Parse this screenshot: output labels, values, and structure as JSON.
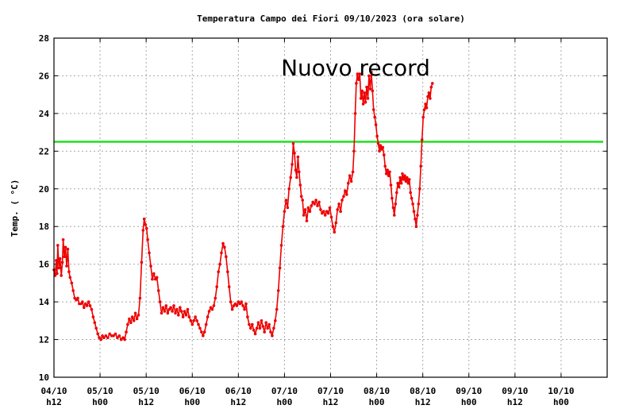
{
  "chart_data": {
    "type": "line",
    "title": "Temperatura Campo dei Fiori 09/10/2023 (ora solare)",
    "ylabel": "Temp. ( °C)",
    "xlabel": "",
    "ylim": [
      10,
      28
    ],
    "yticks": [
      10,
      12,
      14,
      16,
      18,
      20,
      22,
      24,
      26,
      28
    ],
    "xlim_hours": [
      0,
      144
    ],
    "xticks": [
      {
        "h": 0,
        "line1": "04/10",
        "line2": "h12"
      },
      {
        "h": 12,
        "line1": "05/10",
        "line2": "h00"
      },
      {
        "h": 24,
        "line1": "05/10",
        "line2": "h12"
      },
      {
        "h": 36,
        "line1": "06/10",
        "line2": "h00"
      },
      {
        "h": 48,
        "line1": "06/10",
        "line2": "h12"
      },
      {
        "h": 60,
        "line1": "07/10",
        "line2": "h00"
      },
      {
        "h": 72,
        "line1": "07/10",
        "line2": "h12"
      },
      {
        "h": 84,
        "line1": "08/10",
        "line2": "h00"
      },
      {
        "h": 96,
        "line1": "08/10",
        "line2": "h12"
      },
      {
        "h": 108,
        "line1": "09/10",
        "line2": "h00"
      },
      {
        "h": 120,
        "line1": "09/10",
        "line2": "h12"
      },
      {
        "h": 132,
        "line1": "10/10",
        "line2": "h00"
      }
    ],
    "grid": true,
    "annotation": "Nuovo record",
    "reference_line": {
      "y": 22.5,
      "color": "#22dd22"
    },
    "series": [
      {
        "color": "#ee0000",
        "points": [
          [
            0.0,
            15.7
          ],
          [
            0.3,
            15.4
          ],
          [
            0.6,
            16.2
          ],
          [
            0.8,
            15.5
          ],
          [
            1.0,
            17.0
          ],
          [
            1.3,
            15.8
          ],
          [
            1.6,
            16.3
          ],
          [
            1.9,
            15.4
          ],
          [
            2.2,
            16.1
          ],
          [
            2.4,
            17.3
          ],
          [
            2.7,
            16.4
          ],
          [
            3.0,
            16.9
          ],
          [
            3.3,
            15.9
          ],
          [
            3.6,
            16.8
          ],
          [
            3.9,
            15.6
          ],
          [
            4.2,
            15.3
          ],
          [
            4.6,
            15.0
          ],
          [
            5.0,
            14.6
          ],
          [
            5.4,
            14.2
          ],
          [
            5.8,
            14.1
          ],
          [
            6.2,
            14.2
          ],
          [
            6.6,
            13.9
          ],
          [
            7.0,
            13.9
          ],
          [
            7.4,
            14.0
          ],
          [
            7.8,
            13.7
          ],
          [
            8.2,
            13.9
          ],
          [
            8.6,
            13.8
          ],
          [
            9.0,
            14.0
          ],
          [
            9.4,
            13.8
          ],
          [
            9.8,
            13.6
          ],
          [
            10.2,
            13.2
          ],
          [
            10.6,
            12.9
          ],
          [
            11.0,
            12.6
          ],
          [
            11.4,
            12.3
          ],
          [
            11.8,
            12.1
          ],
          [
            12.2,
            12.0
          ],
          [
            12.6,
            12.2
          ],
          [
            13.0,
            12.1
          ],
          [
            13.5,
            12.2
          ],
          [
            14.0,
            12.1
          ],
          [
            14.5,
            12.3
          ],
          [
            15.0,
            12.2
          ],
          [
            15.5,
            12.2
          ],
          [
            16.0,
            12.3
          ],
          [
            16.5,
            12.1
          ],
          [
            17.0,
            12.2
          ],
          [
            17.5,
            12.0
          ],
          [
            18.0,
            12.1
          ],
          [
            18.4,
            12.0
          ],
          [
            18.8,
            12.4
          ],
          [
            19.2,
            12.8
          ],
          [
            19.6,
            13.1
          ],
          [
            20.0,
            12.9
          ],
          [
            20.4,
            13.2
          ],
          [
            20.8,
            13.0
          ],
          [
            21.2,
            13.4
          ],
          [
            21.6,
            13.1
          ],
          [
            22.0,
            13.3
          ],
          [
            22.4,
            14.2
          ],
          [
            22.8,
            16.1
          ],
          [
            23.2,
            17.8
          ],
          [
            23.5,
            18.4
          ],
          [
            23.8,
            18.1
          ],
          [
            24.1,
            17.9
          ],
          [
            24.4,
            17.3
          ],
          [
            24.8,
            16.6
          ],
          [
            25.2,
            15.9
          ],
          [
            25.6,
            15.2
          ],
          [
            26.0,
            15.5
          ],
          [
            26.4,
            15.2
          ],
          [
            26.8,
            15.3
          ],
          [
            27.2,
            14.6
          ],
          [
            27.6,
            14.0
          ],
          [
            28.0,
            13.4
          ],
          [
            28.4,
            13.7
          ],
          [
            28.8,
            13.5
          ],
          [
            29.2,
            13.8
          ],
          [
            29.6,
            13.4
          ],
          [
            30.0,
            13.6
          ],
          [
            30.4,
            13.7
          ],
          [
            30.8,
            13.5
          ],
          [
            31.2,
            13.8
          ],
          [
            31.6,
            13.4
          ],
          [
            32.0,
            13.6
          ],
          [
            32.4,
            13.3
          ],
          [
            32.8,
            13.7
          ],
          [
            33.2,
            13.5
          ],
          [
            33.6,
            13.2
          ],
          [
            34.0,
            13.5
          ],
          [
            34.4,
            13.3
          ],
          [
            34.8,
            13.6
          ],
          [
            35.2,
            13.2
          ],
          [
            35.6,
            13.0
          ],
          [
            36.0,
            12.8
          ],
          [
            36.4,
            13.0
          ],
          [
            36.8,
            13.2
          ],
          [
            37.2,
            13.0
          ],
          [
            37.6,
            12.8
          ],
          [
            38.0,
            12.6
          ],
          [
            38.4,
            12.4
          ],
          [
            38.8,
            12.2
          ],
          [
            39.2,
            12.4
          ],
          [
            39.6,
            12.8
          ],
          [
            40.0,
            13.2
          ],
          [
            40.4,
            13.5
          ],
          [
            40.8,
            13.7
          ],
          [
            41.2,
            13.6
          ],
          [
            41.6,
            13.8
          ],
          [
            42.0,
            14.2
          ],
          [
            42.4,
            14.8
          ],
          [
            42.8,
            15.6
          ],
          [
            43.2,
            16.0
          ],
          [
            43.6,
            16.6
          ],
          [
            44.0,
            17.1
          ],
          [
            44.4,
            16.9
          ],
          [
            44.8,
            16.4
          ],
          [
            45.2,
            15.6
          ],
          [
            45.6,
            14.8
          ],
          [
            46.0,
            14.0
          ],
          [
            46.4,
            13.6
          ],
          [
            46.8,
            13.8
          ],
          [
            47.2,
            13.9
          ],
          [
            47.6,
            13.8
          ],
          [
            48.0,
            14.0
          ],
          [
            48.4,
            13.9
          ],
          [
            48.8,
            14.0
          ],
          [
            49.2,
            13.8
          ],
          [
            49.6,
            13.6
          ],
          [
            50.0,
            13.9
          ],
          [
            50.4,
            13.2
          ],
          [
            50.8,
            12.8
          ],
          [
            51.2,
            12.6
          ],
          [
            51.6,
            12.8
          ],
          [
            52.0,
            12.5
          ],
          [
            52.4,
            12.3
          ],
          [
            52.8,
            12.6
          ],
          [
            53.2,
            12.9
          ],
          [
            53.6,
            12.6
          ],
          [
            54.0,
            13.0
          ],
          [
            54.4,
            12.7
          ],
          [
            54.8,
            12.4
          ],
          [
            55.2,
            12.9
          ],
          [
            55.6,
            12.6
          ],
          [
            56.0,
            12.8
          ],
          [
            56.4,
            12.4
          ],
          [
            56.8,
            12.2
          ],
          [
            57.2,
            12.6
          ],
          [
            57.6,
            13.0
          ],
          [
            58.0,
            13.6
          ],
          [
            58.4,
            14.6
          ],
          [
            58.8,
            15.8
          ],
          [
            59.2,
            17.0
          ],
          [
            59.6,
            18.0
          ],
          [
            60.0,
            18.8
          ],
          [
            60.4,
            19.4
          ],
          [
            60.8,
            19.0
          ],
          [
            61.2,
            20.0
          ],
          [
            61.6,
            20.6
          ],
          [
            62.0,
            21.3
          ],
          [
            62.3,
            22.4
          ],
          [
            62.6,
            21.9
          ],
          [
            62.9,
            21.0
          ],
          [
            63.2,
            20.6
          ],
          [
            63.5,
            21.7
          ],
          [
            63.8,
            20.9
          ],
          [
            64.1,
            20.2
          ],
          [
            64.4,
            19.6
          ],
          [
            64.7,
            19.4
          ],
          [
            65.0,
            18.6
          ],
          [
            65.4,
            18.9
          ],
          [
            65.8,
            18.3
          ],
          [
            66.2,
            19.0
          ],
          [
            66.6,
            18.8
          ],
          [
            67.0,
            19.1
          ],
          [
            67.4,
            19.3
          ],
          [
            67.8,
            19.2
          ],
          [
            68.2,
            19.4
          ],
          [
            68.6,
            19.1
          ],
          [
            69.0,
            19.3
          ],
          [
            69.4,
            18.9
          ],
          [
            69.8,
            18.7
          ],
          [
            70.2,
            18.8
          ],
          [
            70.6,
            18.6
          ],
          [
            71.0,
            18.8
          ],
          [
            71.4,
            18.7
          ],
          [
            71.8,
            19.0
          ],
          [
            72.2,
            18.5
          ],
          [
            72.6,
            18.0
          ],
          [
            73.0,
            17.7
          ],
          [
            73.4,
            18.2
          ],
          [
            73.8,
            18.9
          ],
          [
            74.2,
            19.2
          ],
          [
            74.6,
            18.8
          ],
          [
            75.0,
            19.4
          ],
          [
            75.4,
            19.6
          ],
          [
            75.8,
            19.9
          ],
          [
            76.2,
            19.7
          ],
          [
            76.6,
            20.3
          ],
          [
            77.0,
            20.7
          ],
          [
            77.4,
            20.4
          ],
          [
            77.8,
            20.9
          ],
          [
            78.1,
            22.0
          ],
          [
            78.4,
            24.0
          ],
          [
            78.7,
            25.6
          ],
          [
            79.0,
            26.1
          ],
          [
            79.3,
            25.8
          ],
          [
            79.6,
            26.1
          ],
          [
            79.9,
            24.8
          ],
          [
            80.2,
            25.2
          ],
          [
            80.5,
            24.5
          ],
          [
            80.8,
            25.1
          ],
          [
            81.1,
            24.6
          ],
          [
            81.4,
            25.4
          ],
          [
            81.7,
            24.8
          ],
          [
            82.0,
            26.0
          ],
          [
            82.3,
            25.3
          ],
          [
            82.6,
            26.2
          ],
          [
            82.9,
            25.2
          ],
          [
            83.2,
            24.2
          ],
          [
            83.5,
            23.8
          ],
          [
            83.8,
            23.4
          ],
          [
            84.1,
            22.8
          ],
          [
            84.4,
            22.4
          ],
          [
            84.7,
            22.0
          ],
          [
            85.0,
            22.3
          ],
          [
            85.3,
            22.1
          ],
          [
            85.6,
            22.2
          ],
          [
            85.9,
            21.8
          ],
          [
            86.2,
            21.2
          ],
          [
            86.5,
            20.8
          ],
          [
            86.8,
            21.0
          ],
          [
            87.1,
            20.7
          ],
          [
            87.4,
            20.9
          ],
          [
            87.7,
            20.2
          ],
          [
            88.0,
            19.5
          ],
          [
            88.3,
            19.0
          ],
          [
            88.6,
            18.6
          ],
          [
            88.9,
            19.2
          ],
          [
            89.2,
            19.8
          ],
          [
            89.5,
            20.3
          ],
          [
            89.8,
            20.1
          ],
          [
            90.1,
            20.6
          ],
          [
            90.4,
            20.3
          ],
          [
            90.7,
            20.8
          ],
          [
            91.0,
            20.5
          ],
          [
            91.3,
            20.7
          ],
          [
            91.6,
            20.4
          ],
          [
            91.9,
            20.6
          ],
          [
            92.2,
            20.3
          ],
          [
            92.5,
            20.5
          ],
          [
            92.8,
            19.8
          ],
          [
            93.1,
            19.5
          ],
          [
            93.4,
            19.2
          ],
          [
            93.7,
            18.8
          ],
          [
            94.0,
            18.4
          ],
          [
            94.3,
            18.0
          ],
          [
            94.6,
            18.6
          ],
          [
            94.9,
            19.2
          ],
          [
            95.2,
            20.0
          ],
          [
            95.5,
            21.2
          ],
          [
            95.8,
            22.6
          ],
          [
            96.1,
            23.8
          ],
          [
            96.4,
            24.2
          ],
          [
            96.7,
            24.5
          ],
          [
            97.0,
            24.3
          ],
          [
            97.3,
            24.9
          ],
          [
            97.6,
            25.1
          ],
          [
            97.9,
            24.8
          ],
          [
            98.2,
            25.4
          ],
          [
            98.5,
            25.6
          ]
        ]
      }
    ]
  }
}
